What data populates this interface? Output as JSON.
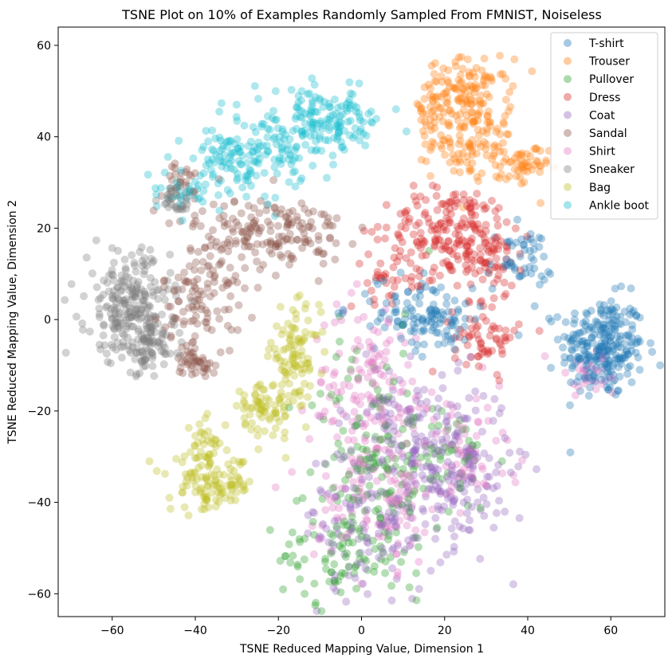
{
  "chart_data": {
    "type": "scatter",
    "title": "TSNE Plot on 10% of Examples Randomly Sampled From FMNIST, Noiseless",
    "xlabel": "TSNE Reduced Mapping Value, Dimension 1",
    "ylabel": "TSNE Reduced Mapping Value, Dimension 2",
    "xlim": [
      -73,
      73
    ],
    "ylim": [
      -65,
      64
    ],
    "xticks": [
      -60,
      -40,
      -20,
      0,
      20,
      40,
      60
    ],
    "yticks": [
      -60,
      -40,
      -20,
      0,
      20,
      40,
      60
    ],
    "grid": false,
    "legend_position": "top-right",
    "point_alpha": 0.35,
    "series": [
      {
        "name": "T-shirt",
        "color": "#1f77b4",
        "clusters": [
          {
            "cx": 58,
            "cy": -6,
            "sx": 5.0,
            "sy": 5.5,
            "n": 260
          },
          {
            "cx": 18,
            "cy": 0,
            "sx": 4.5,
            "sy": 3.5,
            "n": 90
          },
          {
            "cx": 38,
            "cy": 13,
            "sx": 4.0,
            "sy": 3.5,
            "n": 50
          },
          {
            "cx": 8,
            "cy": 3,
            "sx": 6.0,
            "sy": 4.0,
            "n": 35
          }
        ]
      },
      {
        "name": "Trouser",
        "color": "#ff7f0e",
        "clusters": [
          {
            "cx": 26,
            "cy": 49,
            "sx": 5.0,
            "sy": 4.0,
            "n": 130
          },
          {
            "cx": 27,
            "cy": 38,
            "sx": 5.0,
            "sy": 3.5,
            "n": 90
          },
          {
            "cx": 39,
            "cy": 33,
            "sx": 3.0,
            "sy": 2.5,
            "n": 45
          },
          {
            "cx": 16,
            "cy": 45,
            "sx": 2.0,
            "sy": 4.0,
            "n": 30
          }
        ]
      },
      {
        "name": "Pullover",
        "color": "#2ca02c",
        "clusters": [
          {
            "cx": 3,
            "cy": -33,
            "sx": 8.0,
            "sy": 14.0,
            "n": 170
          },
          {
            "cx": -6,
            "cy": -52,
            "sx": 7.0,
            "sy": 4.5,
            "n": 60
          },
          {
            "cx": 20,
            "cy": -30,
            "sx": 6.0,
            "sy": 6.0,
            "n": 40
          }
        ]
      },
      {
        "name": "Dress",
        "color": "#d62728",
        "clusters": [
          {
            "cx": 22,
            "cy": 20,
            "sx": 8.0,
            "sy": 4.5,
            "n": 180
          },
          {
            "cx": 30,
            "cy": 12,
            "sx": 5.0,
            "sy": 4.0,
            "n": 60
          },
          {
            "cx": 30,
            "cy": -4,
            "sx": 4.0,
            "sy": 3.5,
            "n": 60
          },
          {
            "cx": 8,
            "cy": 9,
            "sx": 6.0,
            "sy": 2.5,
            "n": 40
          }
        ]
      },
      {
        "name": "Coat",
        "color": "#9467bd",
        "clusters": [
          {
            "cx": 22,
            "cy": -32,
            "sx": 7.0,
            "sy": 9.0,
            "n": 200
          },
          {
            "cx": 2,
            "cy": -44,
            "sx": 8.0,
            "sy": 9.0,
            "n": 140
          },
          {
            "cx": 8,
            "cy": -20,
            "sx": 6.0,
            "sy": 5.0,
            "n": 60
          }
        ]
      },
      {
        "name": "Sandal",
        "color": "#8c564b",
        "clusters": [
          {
            "cx": -22,
            "cy": 19,
            "sx": 9.0,
            "sy": 4.0,
            "n": 170
          },
          {
            "cx": -38,
            "cy": 5,
            "sx": 5.0,
            "sy": 6.0,
            "n": 110
          },
          {
            "cx": -40,
            "cy": -9,
            "sx": 2.5,
            "sy": 1.6,
            "n": 40
          },
          {
            "cx": -44,
            "cy": 29,
            "sx": 3.5,
            "sy": 3.0,
            "n": 30
          }
        ]
      },
      {
        "name": "Shirt",
        "color": "#e377c2",
        "clusters": [
          {
            "cx": 2,
            "cy": -16,
            "sx": 7.0,
            "sy": 10.0,
            "n": 150
          },
          {
            "cx": 5,
            "cy": -40,
            "sx": 8.0,
            "sy": 7.0,
            "n": 90
          },
          {
            "cx": 25,
            "cy": -30,
            "sx": 6.0,
            "sy": 7.0,
            "n": 50
          },
          {
            "cx": 55,
            "cy": -12,
            "sx": 5.0,
            "sy": 2.5,
            "n": 30
          }
        ]
      },
      {
        "name": "Sneaker",
        "color": "#7f7f7f",
        "clusters": [
          {
            "cx": -56,
            "cy": 3,
            "sx": 5.0,
            "sy": 6.0,
            "n": 220
          },
          {
            "cx": -51,
            "cy": -5,
            "sx": 3.0,
            "sy": 4.0,
            "n": 80
          },
          {
            "cx": -44,
            "cy": 26,
            "sx": 2.5,
            "sy": 1.8,
            "n": 25
          }
        ]
      },
      {
        "name": "Bag",
        "color": "#bcbd22",
        "clusters": [
          {
            "cx": -16,
            "cy": -8,
            "sx": 3.0,
            "sy": 5.0,
            "n": 100
          },
          {
            "cx": -24,
            "cy": -20,
            "sx": 3.5,
            "sy": 3.0,
            "n": 70
          },
          {
            "cx": -36,
            "cy": -36,
            "sx": 5.0,
            "sy": 3.0,
            "n": 110
          },
          {
            "cx": -38,
            "cy": -27,
            "sx": 2.0,
            "sy": 3.0,
            "n": 30
          }
        ]
      },
      {
        "name": "Ankle boot",
        "color": "#17becf",
        "clusters": [
          {
            "cx": -10,
            "cy": 43,
            "sx": 8.0,
            "sy": 3.5,
            "n": 170
          },
          {
            "cx": -28,
            "cy": 35,
            "sx": 7.0,
            "sy": 3.5,
            "n": 140
          },
          {
            "cx": -42,
            "cy": 28,
            "sx": 3.0,
            "sy": 2.0,
            "n": 30
          }
        ]
      }
    ]
  }
}
